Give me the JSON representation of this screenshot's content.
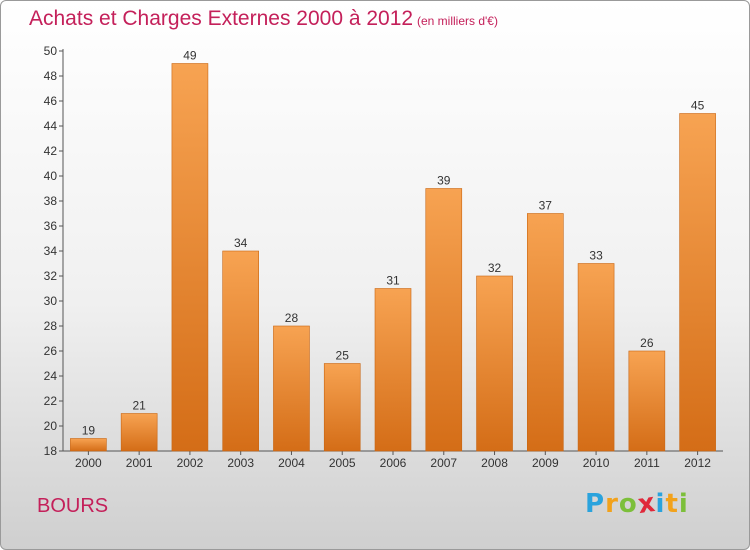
{
  "header": {
    "title": "Achats et Charges Externes 2000 à 2012",
    "subtitle": "(en milliers d'€)"
  },
  "footer": {
    "place": "BOURS",
    "logo": {
      "letters": [
        "P",
        "r",
        "o",
        "x",
        "i",
        "t",
        "i"
      ],
      "colors": [
        "#2aa3dd",
        "#f2a21b",
        "#7cbf3a",
        "#e0283a",
        "#2aa3dd",
        "#f2a21b",
        "#7cbf3a"
      ]
    }
  },
  "colors": {
    "bar_light": "#f7a352",
    "bar_dark": "#d46d17",
    "title": "#c4205a"
  },
  "chart_data": {
    "type": "bar",
    "categories": [
      "2000",
      "2001",
      "2002",
      "2003",
      "2004",
      "2005",
      "2006",
      "2007",
      "2008",
      "2009",
      "2010",
      "2011",
      "2012"
    ],
    "values": [
      19,
      21,
      49,
      34,
      28,
      25,
      31,
      39,
      32,
      37,
      33,
      26,
      45
    ],
    "title": "Achats et Charges Externes 2000 à 2012",
    "subtitle": "(en milliers d'€)",
    "xlabel": "",
    "ylabel": "",
    "ylim": [
      18,
      50
    ],
    "yticks": [
      18,
      20,
      22,
      24,
      26,
      28,
      30,
      32,
      34,
      36,
      38,
      40,
      42,
      44,
      46,
      48,
      50
    ],
    "grid": false,
    "data_labels": true
  }
}
